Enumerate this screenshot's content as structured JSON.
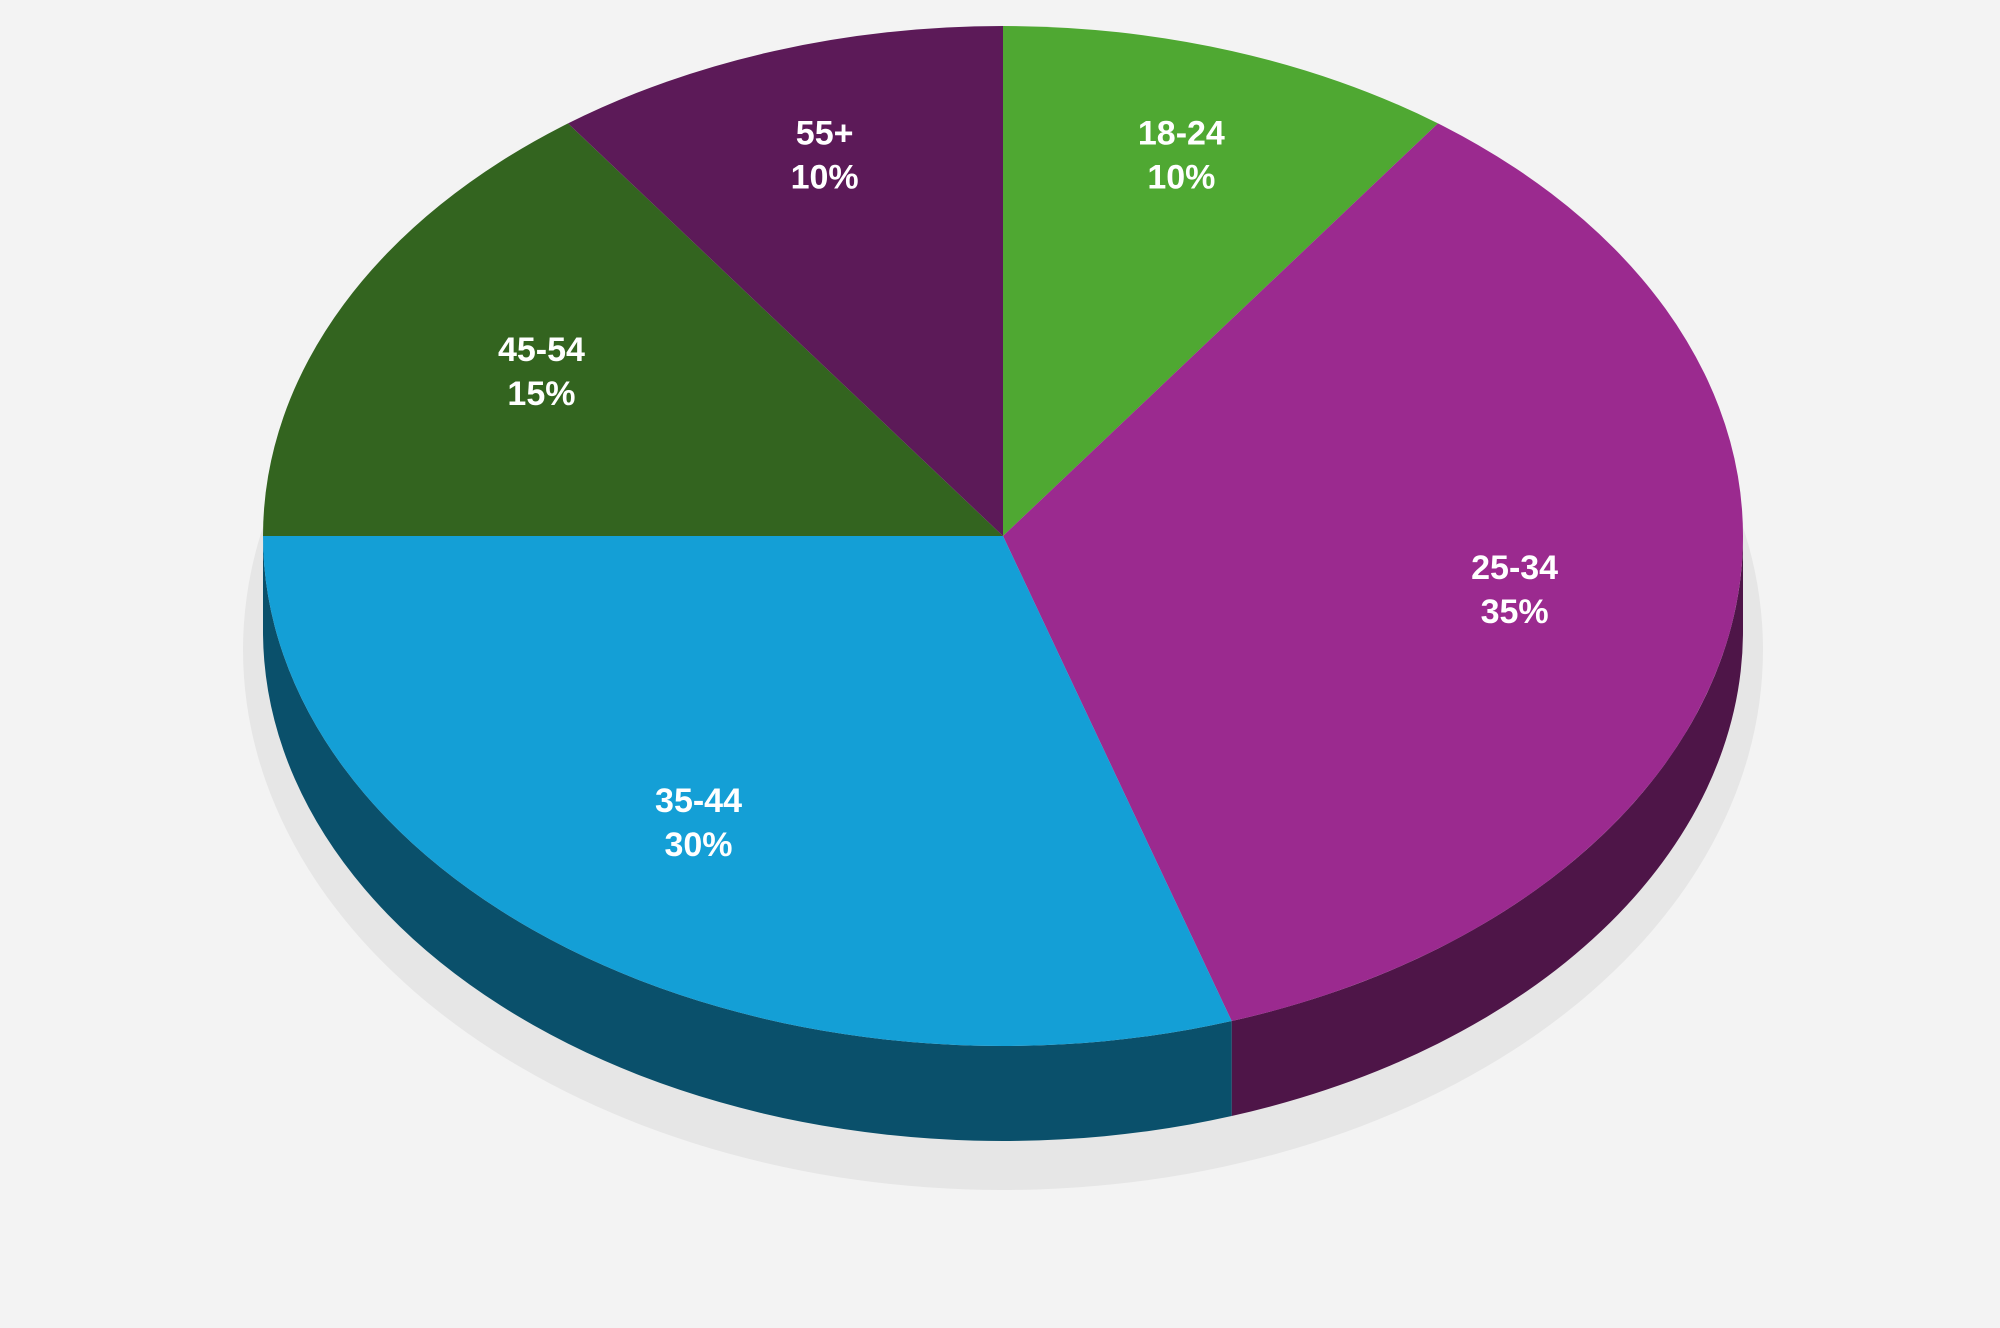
{
  "chart_data": {
    "type": "pie",
    "categories": [
      "18-24",
      "25-34",
      "35-44",
      "45-54",
      "55+"
    ],
    "values": [
      10,
      35,
      30,
      15,
      10
    ],
    "value_labels": [
      "10%",
      "35%",
      "30%",
      "15%",
      "10%"
    ],
    "colors": [
      "#4fa832",
      "#9b2a8f",
      "#149fd6",
      "#33641f",
      "#5c1a58"
    ]
  }
}
